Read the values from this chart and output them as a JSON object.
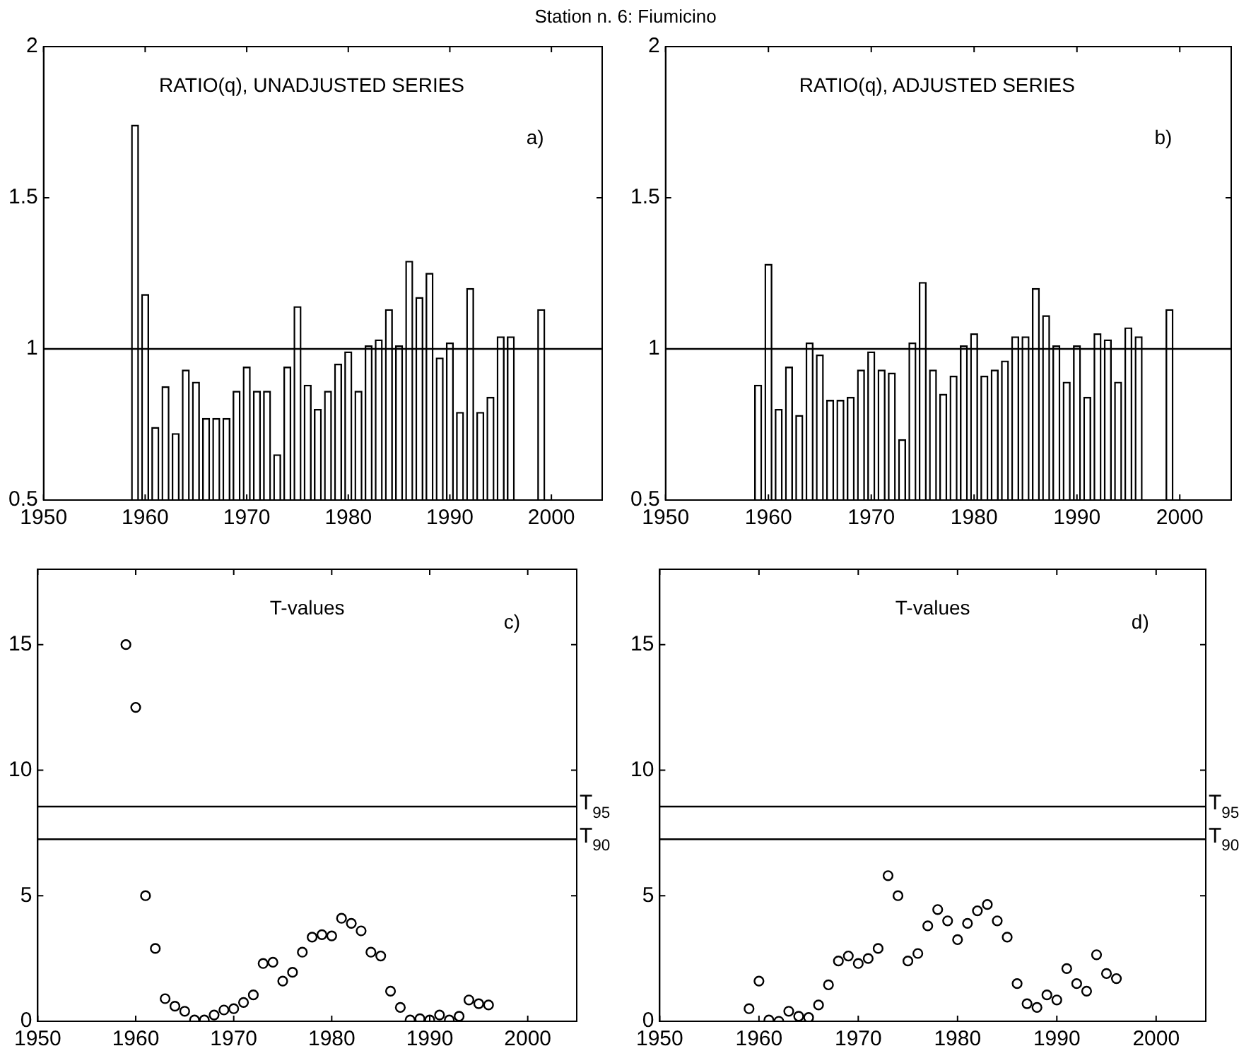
{
  "chart_data": [
    {
      "type": "bar",
      "title": "Station n. 6: Fiumicino",
      "annotations": [
        "RATIO(q), UNADJUSTED SERIES",
        "a)"
      ],
      "x": [
        1959,
        1960,
        1961,
        1962,
        1963,
        1964,
        1965,
        1966,
        1967,
        1968,
        1969,
        1970,
        1971,
        1972,
        1973,
        1974,
        1975,
        1976,
        1977,
        1978,
        1979,
        1980,
        1981,
        1982,
        1983,
        1984,
        1985,
        1986,
        1987,
        1988,
        1989,
        1990,
        1991,
        1992,
        1993,
        1994,
        1995,
        1996,
        1999
      ],
      "series": [
        {
          "color": "#ffffff",
          "values": [
            1.74,
            1.18,
            0.74,
            0.875,
            0.72,
            0.93,
            0.89,
            0.77,
            0.77,
            0.77,
            0.86,
            0.94,
            0.86,
            0.86,
            0.65,
            0.94,
            1.14,
            0.88,
            0.8,
            0.86,
            0.95,
            0.99,
            0.86,
            1.01,
            1.03,
            1.13,
            1.01,
            1.29,
            1.17,
            1.25,
            0.97,
            1.02,
            0.79,
            1.2,
            0.79,
            0.84,
            1.04,
            1.04,
            1.13
          ]
        }
      ],
      "xlim": [
        1950,
        2005
      ],
      "xticks": [
        1950,
        1960,
        1970,
        1980,
        1990,
        2000
      ],
      "ylim": [
        0.5,
        2
      ],
      "yticks": [
        0.5,
        1,
        1.5,
        2
      ],
      "ref_lines": [
        {
          "axis": "y",
          "value": 1,
          "color": "#000000"
        }
      ],
      "grid": false,
      "legend": false
    },
    {
      "type": "bar",
      "annotations": [
        "RATIO(q), ADJUSTED SERIES",
        "b)"
      ],
      "x": [
        1959,
        1960,
        1961,
        1962,
        1963,
        1964,
        1965,
        1966,
        1967,
        1968,
        1969,
        1970,
        1971,
        1972,
        1973,
        1974,
        1975,
        1976,
        1977,
        1978,
        1979,
        1980,
        1981,
        1982,
        1983,
        1984,
        1985,
        1986,
        1987,
        1988,
        1989,
        1990,
        1991,
        1992,
        1993,
        1994,
        1995,
        1996,
        1999
      ],
      "series": [
        {
          "color": "#ffffff",
          "values": [
            0.88,
            1.28,
            0.8,
            0.94,
            0.78,
            1.02,
            0.98,
            0.83,
            0.83,
            0.84,
            0.93,
            0.99,
            0.93,
            0.92,
            0.7,
            1.02,
            1.22,
            0.93,
            0.85,
            0.91,
            1.01,
            1.05,
            0.91,
            0.93,
            0.96,
            1.04,
            1.04,
            1.2,
            1.11,
            1.01,
            0.89,
            1.01,
            0.84,
            1.05,
            1.03,
            0.89,
            1.07,
            1.04,
            1.13
          ]
        }
      ],
      "xlim": [
        1950,
        2005
      ],
      "xticks": [
        1950,
        1960,
        1970,
        1980,
        1990,
        2000
      ],
      "ylim": [
        0.5,
        2
      ],
      "yticks": [
        0.5,
        1,
        1.5,
        2
      ],
      "ref_lines": [
        {
          "axis": "y",
          "value": 1,
          "color": "#000000"
        }
      ],
      "grid": false,
      "legend": false
    },
    {
      "type": "scatter",
      "annotations": [
        "T-values",
        "c)"
      ],
      "x": [
        1959,
        1960,
        1961,
        1962,
        1963,
        1964,
        1965,
        1966,
        1967,
        1968,
        1969,
        1970,
        1971,
        1972,
        1973,
        1974,
        1975,
        1976,
        1977,
        1978,
        1979,
        1980,
        1981,
        1982,
        1983,
        1984,
        1985,
        1986,
        1987,
        1988,
        1989,
        1990,
        1991,
        1992,
        1993,
        1994,
        1995,
        1996
      ],
      "series": [
        {
          "color": "#000000",
          "values": [
            15,
            12.5,
            5,
            2.9,
            0.9,
            0.6,
            0.4,
            0.05,
            0.05,
            0.25,
            0.45,
            0.5,
            0.75,
            1.05,
            2.3,
            2.35,
            1.6,
            1.95,
            2.75,
            3.35,
            3.45,
            3.4,
            4.1,
            3.9,
            3.6,
            2.75,
            2.6,
            1.2,
            0.55,
            0.05,
            0.1,
            0.05,
            0.25,
            0.05,
            0.2,
            0.85,
            0.7,
            0.65
          ]
        }
      ],
      "xlim": [
        1950,
        2005
      ],
      "xticks": [
        1950,
        1960,
        1970,
        1980,
        1990,
        2000
      ],
      "ylim": [
        0,
        18
      ],
      "yticks": [
        0,
        5,
        10,
        15
      ],
      "ref_lines": [
        {
          "axis": "y",
          "value": 8.55,
          "label": "T$_{95}$",
          "color": "#000000"
        },
        {
          "axis": "y",
          "value": 7.25,
          "label": "T$_{90}$",
          "color": "#000000"
        }
      ],
      "grid": false,
      "legend": false,
      "marker": "circle"
    },
    {
      "type": "scatter",
      "annotations": [
        "T-values",
        "d)"
      ],
      "x": [
        1959,
        1960,
        1961,
        1962,
        1963,
        1964,
        1965,
        1966,
        1967,
        1968,
        1969,
        1970,
        1971,
        1972,
        1973,
        1974,
        1975,
        1976,
        1977,
        1978,
        1979,
        1980,
        1981,
        1982,
        1983,
        1984,
        1985,
        1986,
        1987,
        1988,
        1989,
        1990,
        1991,
        1992,
        1993,
        1994,
        1995,
        1996
      ],
      "series": [
        {
          "color": "#000000",
          "values": [
            0.5,
            1.6,
            0.05,
            0,
            0.4,
            0.2,
            0.15,
            0.65,
            1.45,
            2.4,
            2.6,
            2.3,
            2.5,
            2.9,
            5.8,
            5,
            2.4,
            2.7,
            3.8,
            4.45,
            4,
            3.25,
            3.9,
            4.4,
            4.65,
            4,
            3.35,
            1.5,
            0.7,
            0.55,
            1.05,
            0.85,
            2.1,
            1.5,
            1.2,
            2.65,
            1.9,
            1.7
          ]
        }
      ],
      "xlim": [
        1950,
        2005
      ],
      "xticks": [
        1950,
        1960,
        1970,
        1980,
        1990,
        2000
      ],
      "ylim": [
        0,
        18
      ],
      "yticks": [
        0,
        5,
        10,
        15
      ],
      "ref_lines": [
        {
          "axis": "y",
          "value": 8.55,
          "label": "T$_{95}$",
          "color": "#000000"
        },
        {
          "axis": "y",
          "value": 7.25,
          "label": "T$_{90}$",
          "color": "#000000"
        }
      ],
      "grid": false,
      "legend": false,
      "marker": "circle"
    }
  ]
}
